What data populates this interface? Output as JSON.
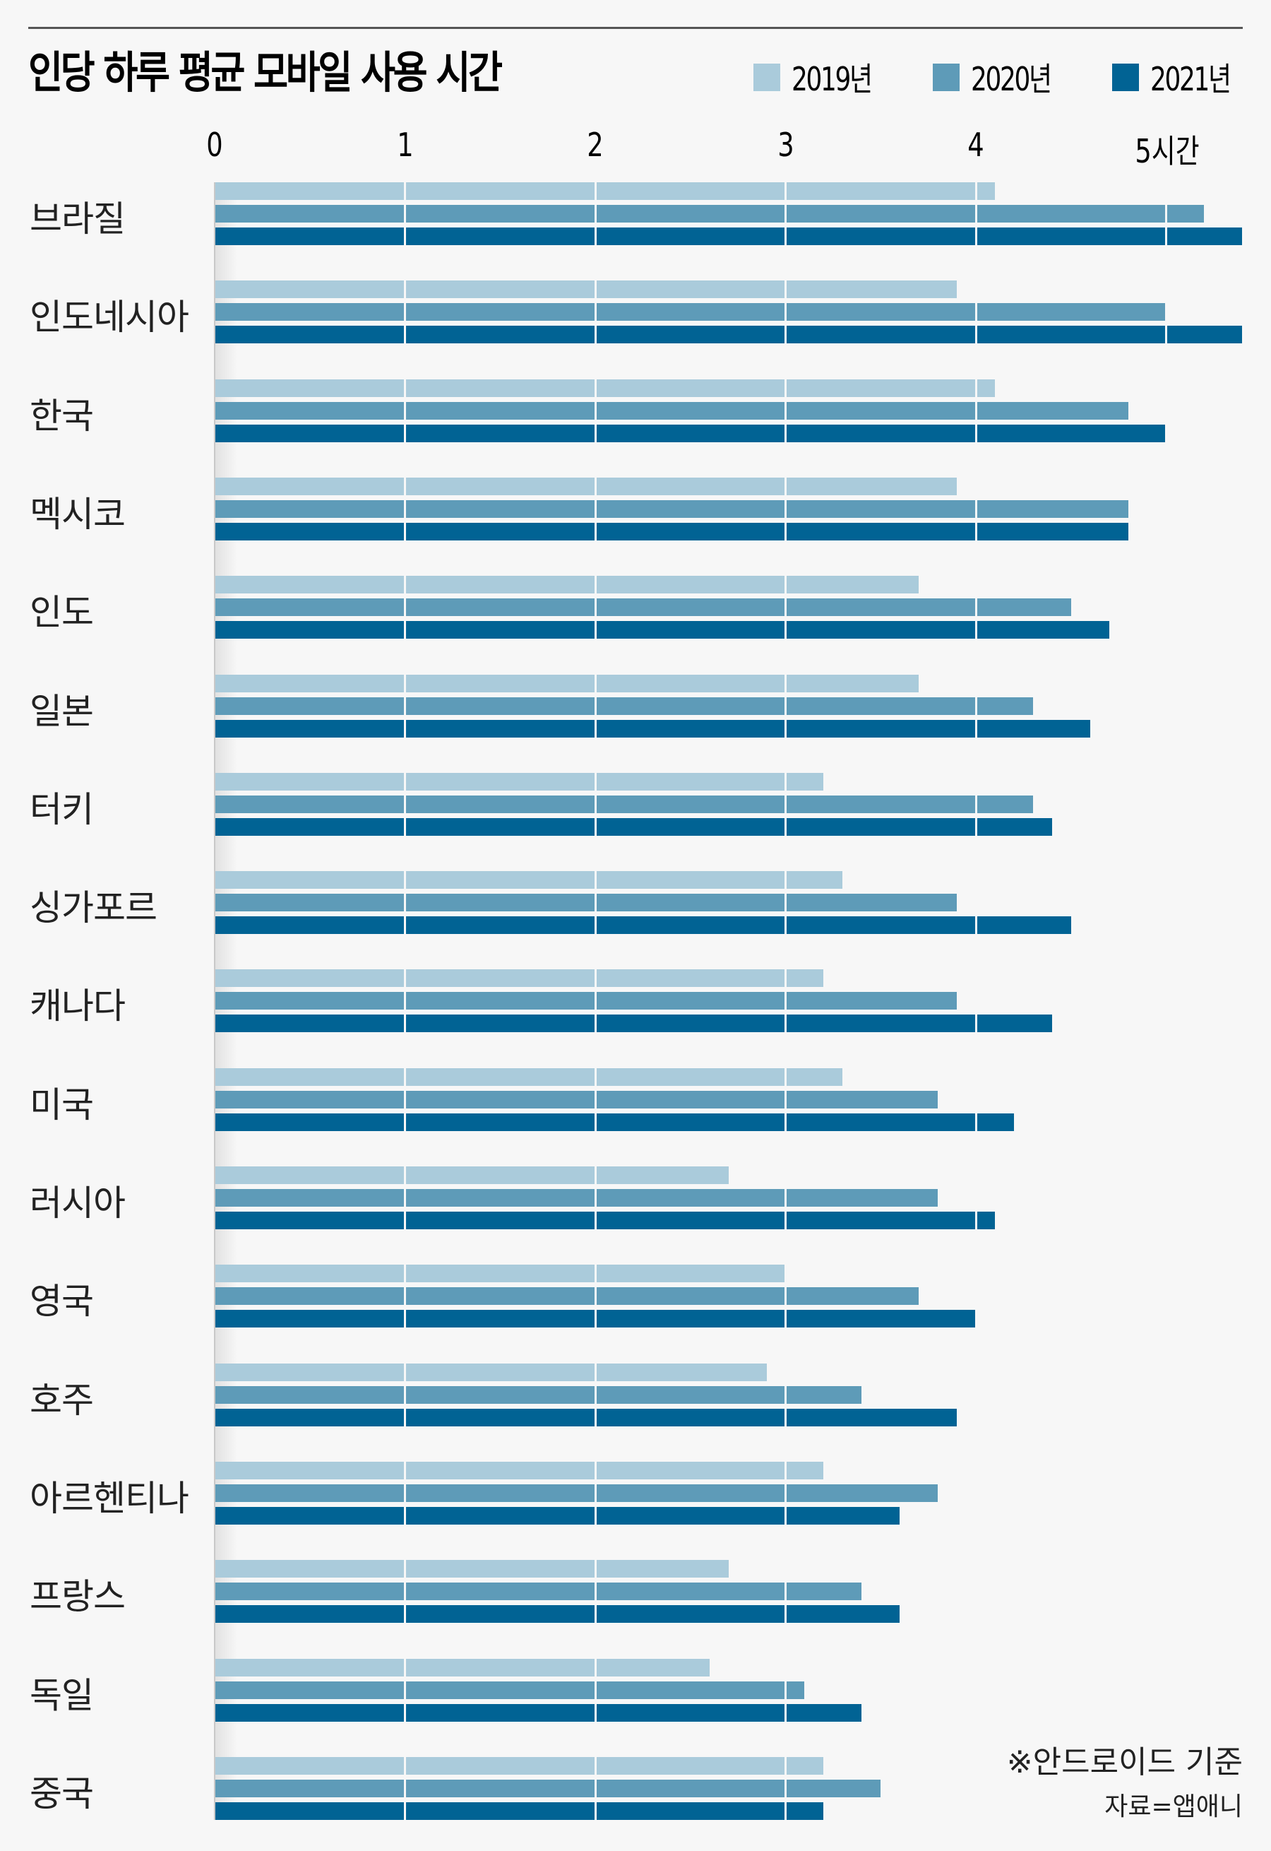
{
  "title": "인당 하루 평균 모바일 사용 시간",
  "legend": [
    {
      "label": "2019년",
      "color": "#AACBDB"
    },
    {
      "label": "2020년",
      "color": "#5E9BB8"
    },
    {
      "label": "2021년",
      "color": "#016394"
    }
  ],
  "axis": {
    "ticks": [
      "0",
      "1",
      "2",
      "3",
      "4",
      "5시간"
    ]
  },
  "notes": {
    "basis": "※안드로이드 기준",
    "source": "자료=앱애니"
  },
  "chart_data": {
    "type": "bar",
    "orientation": "horizontal",
    "title": "인당 하루 평균 모바일 사용 시간",
    "xlabel": "시간",
    "ylabel": "",
    "xlim": [
      0,
      5.4
    ],
    "x_ticks": [
      "0",
      "1",
      "2",
      "3",
      "4",
      "5시간"
    ],
    "grid": true,
    "legend_position": "top-right",
    "categories": [
      "브라질",
      "인도네시아",
      "한국",
      "멕시코",
      "인도",
      "일본",
      "터키",
      "싱가포르",
      "캐나다",
      "미국",
      "러시아",
      "영국",
      "호주",
      "아르헨티나",
      "프랑스",
      "독일",
      "중국"
    ],
    "series": [
      {
        "name": "2019년",
        "color": "#AACBDB",
        "values": [
          4.1,
          3.9,
          4.1,
          3.9,
          3.7,
          3.7,
          3.2,
          3.3,
          3.2,
          3.3,
          2.7,
          3.0,
          2.9,
          3.2,
          2.7,
          2.6,
          3.2
        ]
      },
      {
        "name": "2020년",
        "color": "#5E9BB8",
        "values": [
          5.2,
          5.0,
          4.8,
          4.8,
          4.5,
          4.3,
          4.3,
          3.9,
          3.9,
          3.8,
          3.8,
          3.7,
          3.4,
          3.8,
          3.4,
          3.1,
          3.5
        ]
      },
      {
        "name": "2021년",
        "color": "#016394",
        "values": [
          5.4,
          5.4,
          5.0,
          4.8,
          4.7,
          4.6,
          4.4,
          4.5,
          4.4,
          4.2,
          4.1,
          4.0,
          3.9,
          3.6,
          3.6,
          3.4,
          3.2
        ]
      }
    ],
    "annotations": [
      "※안드로이드 기준",
      "자료=앱애니"
    ]
  }
}
